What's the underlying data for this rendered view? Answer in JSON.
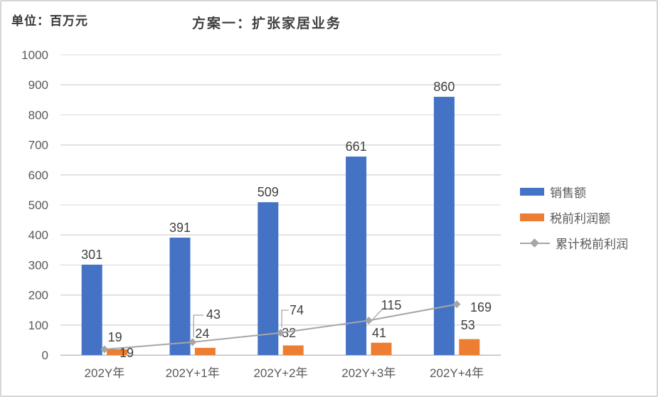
{
  "chart": {
    "unit_label": "单位：百万元",
    "title": "方案一：扩张家居业务"
  },
  "legend": {
    "items": [
      {
        "label": "销售额",
        "color": "#4472C4",
        "marker": "bar"
      },
      {
        "label": "税前利润额",
        "color": "#ED7D31",
        "marker": "bar"
      },
      {
        "label": "累计税前利润",
        "color": "#A6A6A6",
        "marker": "line-diamond"
      }
    ]
  },
  "chart_data": {
    "type": "bar",
    "title": "方案一：扩张家居业务",
    "unit": "百万元",
    "categories": [
      "202Y年",
      "202Y+1年",
      "202Y+2年",
      "202Y+3年",
      "202Y+4年"
    ],
    "series": [
      {
        "name": "销售额",
        "type": "bar",
        "color": "#4472C4",
        "values": [
          301,
          391,
          509,
          661,
          860
        ]
      },
      {
        "name": "税前利润额",
        "type": "bar",
        "color": "#ED7D31",
        "values": [
          19,
          24,
          32,
          41,
          53
        ]
      },
      {
        "name": "累计税前利润",
        "type": "line",
        "color": "#A6A6A6",
        "marker": "diamond",
        "values": [
          19,
          43,
          74,
          115,
          169
        ]
      }
    ],
    "ylabel": "",
    "xlabel": "",
    "ylim": [
      0,
      1000
    ],
    "ytick_interval": 100,
    "grid": true,
    "data_labels": true,
    "legend_position": "right"
  }
}
